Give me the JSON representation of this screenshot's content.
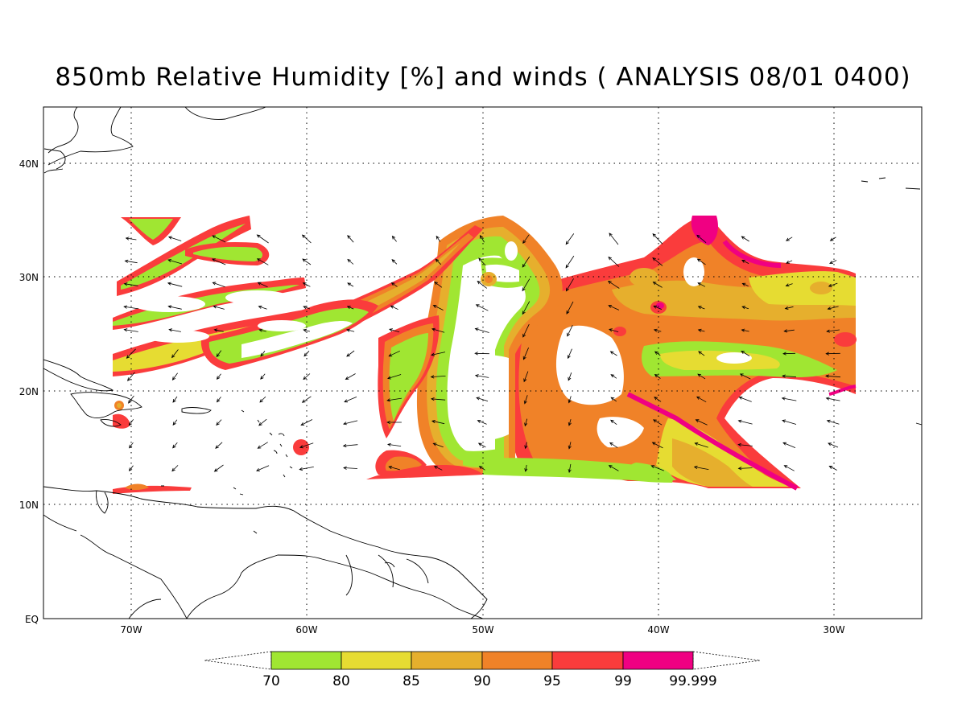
{
  "title": "850mb Relative Humidity [%] and winds ( ANALYSIS 08/01 0400)",
  "map": {
    "lat_range": [
      0,
      45
    ],
    "lon_range": [
      -75,
      -25
    ],
    "lat_ticks": [
      {
        "value": 40,
        "label": "40N"
      },
      {
        "value": 30,
        "label": "30N"
      },
      {
        "value": 20,
        "label": "20N"
      },
      {
        "value": 10,
        "label": "10N"
      },
      {
        "value": 0,
        "label": "EQ"
      }
    ],
    "lon_ticks": [
      {
        "value": -70,
        "label": "70W"
      },
      {
        "value": -60,
        "label": "60W"
      },
      {
        "value": -50,
        "label": "50W"
      },
      {
        "value": -40,
        "label": "40W"
      },
      {
        "value": -30,
        "label": "30W"
      }
    ],
    "grid": "dotted"
  },
  "colorbar": {
    "levels": [
      "70",
      "80",
      "85",
      "90",
      "95",
      "99",
      "99.999"
    ],
    "colors": [
      "#a0e632",
      "#e6dc32",
      "#e6af2d",
      "#f08228",
      "#fa3c3c",
      "#f00082"
    ],
    "ends": "triangular open extensions"
  }
}
